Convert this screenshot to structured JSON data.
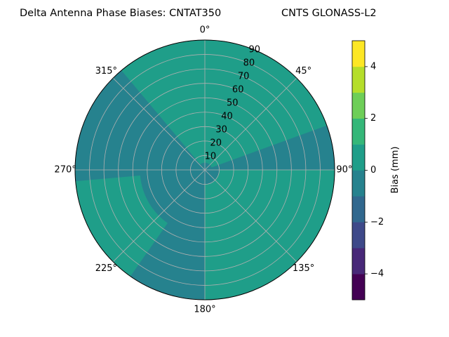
{
  "chart_data": {
    "type": "polar-contour",
    "title_left": "Delta Antenna Phase Biases: CNTAT350",
    "title_right": "CNTS GLONASS-L2",
    "angle_labels": [
      {
        "deg": 0,
        "label": "0°"
      },
      {
        "deg": 45,
        "label": "45°"
      },
      {
        "deg": 90,
        "label": "90°"
      },
      {
        "deg": 135,
        "label": "135°"
      },
      {
        "deg": 180,
        "label": "180°"
      },
      {
        "deg": 225,
        "label": "225°"
      },
      {
        "deg": 270,
        "label": "270°"
      },
      {
        "deg": 315,
        "label": "315°"
      }
    ],
    "radial_ticks": [
      10,
      20,
      30,
      40,
      50,
      60,
      70,
      80,
      90
    ],
    "radial_range": [
      0,
      90
    ],
    "grid": true,
    "colorbar": {
      "label": "Bias (mm)",
      "range": [
        -5,
        5
      ],
      "levels": [
        -5,
        -4,
        -3,
        -2,
        -1,
        0,
        1,
        2,
        3,
        4,
        5
      ],
      "tick_values": [
        -4,
        -2,
        0,
        2,
        4
      ],
      "tick_labels": [
        "−4",
        "−2",
        "0",
        "2",
        "4"
      ],
      "colors": [
        "#440154",
        "#482878",
        "#3e4989",
        "#31688e",
        "#26828e",
        "#1f9e89",
        "#35b779",
        "#6ece58",
        "#b5de2b",
        "#fde725"
      ]
    },
    "regions": [
      {
        "level_range": [
          -1,
          0
        ],
        "color": "#26828e",
        "description": "background"
      },
      {
        "level_range": [
          0,
          1
        ],
        "color": "#1f9e89",
        "azimuth_deg": [
          320,
          70
        ],
        "elevation": [
          5,
          90
        ]
      },
      {
        "level_range": [
          0,
          1
        ],
        "color": "#1f9e89",
        "azimuth_deg": [
          90,
          180
        ],
        "elevation": [
          10,
          90
        ]
      },
      {
        "level_range": [
          0,
          1
        ],
        "color": "#1f9e89",
        "azimuth_deg": [
          215,
          265
        ],
        "elevation": [
          45,
          90
        ]
      }
    ]
  }
}
